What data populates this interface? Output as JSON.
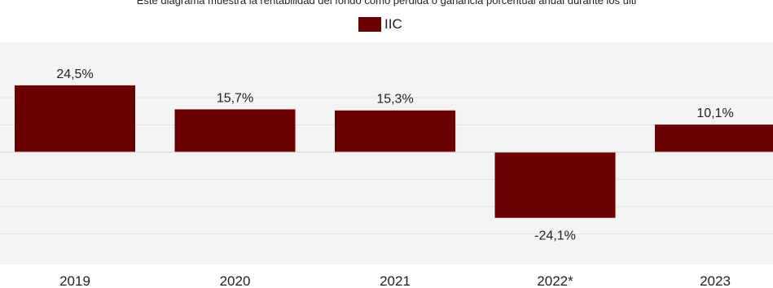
{
  "chart_data": {
    "type": "bar",
    "subtitle": "Este diagrama muestra la rentabilidad del fondo como pérdida o ganancia porcentual anual durante los últi",
    "categories": [
      "2019",
      "2020",
      "2021",
      "2022*",
      "2023"
    ],
    "series": [
      {
        "name": "IIC",
        "values": [
          24.5,
          15.7,
          15.3,
          -24.1,
          10.1
        ],
        "labels": [
          "24,5%",
          "15,7%",
          "15,3%",
          "-24,1%",
          "10,1%"
        ]
      }
    ],
    "legend_position": "top-center",
    "grid": true,
    "colors": {
      "bar": "#6b0000",
      "grid": "#e2e2e2",
      "background": "#f4f4f4"
    }
  }
}
